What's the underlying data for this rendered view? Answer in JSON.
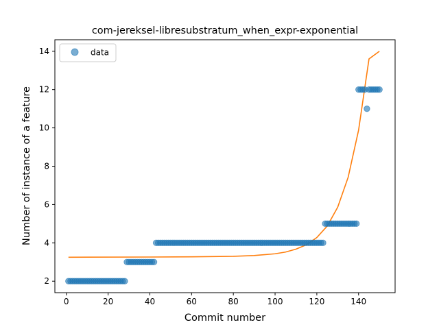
{
  "chart_data": {
    "type": "scatter",
    "title": "com-jereksel-libresubstratum_when_expr-exponential",
    "xlabel": "Commit number",
    "ylabel": "Number of instance of a feature",
    "xlim": [
      -5.5,
      157.5
    ],
    "ylim": [
      1.4,
      14.6
    ],
    "xticks": [
      0,
      20,
      40,
      60,
      80,
      100,
      120,
      140
    ],
    "yticks": [
      2,
      4,
      6,
      8,
      10,
      12,
      14
    ],
    "grid": false,
    "legend": {
      "position": "top-left",
      "entries": [
        "data"
      ]
    },
    "series": [
      {
        "name": "data",
        "kind": "scatter",
        "color": "#1f77b4",
        "opacity": 0.6,
        "segments": [
          {
            "x_from": 1,
            "x_to": 28,
            "y": 2
          },
          {
            "x_from": 29,
            "x_to": 42,
            "y": 3
          },
          {
            "x_from": 43,
            "x_to": 123,
            "y": 4
          },
          {
            "x_from": 124,
            "x_to": 139,
            "y": 5
          },
          {
            "x_from": 140,
            "x_to": 143,
            "y": 12
          },
          {
            "x_from": 144,
            "x_to": 144,
            "y": 11
          },
          {
            "x_from": 145,
            "x_to": 150,
            "y": 12
          }
        ]
      },
      {
        "name": "",
        "kind": "fit-line",
        "color": "#ff7f0e",
        "x_range": [
          1,
          150
        ],
        "points": [
          [
            1,
            3.25
          ],
          [
            40,
            3.26
          ],
          [
            60,
            3.27
          ],
          [
            80,
            3.3
          ],
          [
            90,
            3.34
          ],
          [
            100,
            3.43
          ],
          [
            105,
            3.52
          ],
          [
            110,
            3.67
          ],
          [
            115,
            3.9
          ],
          [
            120,
            4.28
          ],
          [
            125,
            4.88
          ],
          [
            130,
            5.86
          ],
          [
            135,
            7.42
          ],
          [
            140,
            9.88
          ],
          [
            145,
            13.6
          ],
          [
            150,
            14.0
          ]
        ]
      }
    ]
  }
}
